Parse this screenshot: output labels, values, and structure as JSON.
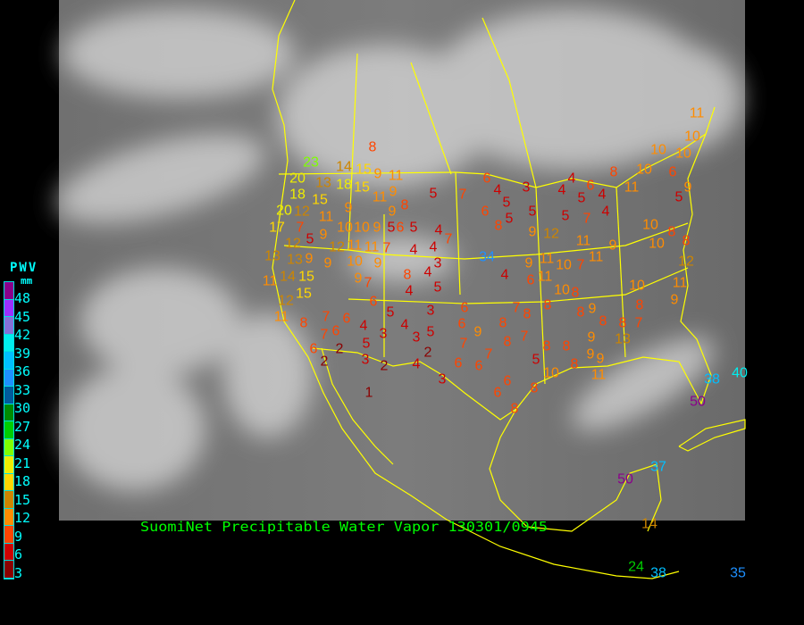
{
  "caption": "SuomiNet Precipitable Water Vapor 130301/0945",
  "legend": {
    "title": "PWV",
    "unit": "mm",
    "labels": [
      "48",
      "45",
      "42",
      "39",
      "36",
      "33",
      "30",
      "27",
      "24",
      "21",
      "18",
      "15",
      "12",
      "9",
      "6",
      "3"
    ],
    "colors": [
      "#8b008b",
      "#9b30ff",
      "#8470d8",
      "#00eeee",
      "#00bfff",
      "#1e90ff",
      "#005a9c",
      "#008b00",
      "#00cd00",
      "#7fff00",
      "#eeee00",
      "#ffd700",
      "#cd8500",
      "#ff8c00",
      "#ff4500",
      "#cd0000",
      "#8b0000"
    ]
  },
  "stations": {
    "values": [
      8,
      23,
      14,
      15,
      9,
      11,
      20,
      13,
      18,
      15,
      11,
      9,
      5,
      7,
      18,
      15,
      20,
      12,
      11,
      9,
      9,
      8,
      5,
      17,
      7,
      9,
      10,
      10,
      9,
      6,
      5,
      4,
      7,
      12,
      5,
      12,
      11,
      11,
      7,
      4,
      4,
      13,
      13,
      9,
      9,
      10,
      9,
      3,
      14,
      4,
      11,
      15,
      9,
      8,
      7,
      15,
      4,
      5,
      12,
      11,
      6,
      5,
      3,
      6,
      7,
      6,
      8,
      4,
      4,
      7,
      6,
      3,
      3,
      5,
      6,
      9,
      8,
      7,
      8,
      8,
      5,
      6,
      2,
      2,
      7,
      8,
      7,
      2,
      3,
      2,
      4,
      6,
      6,
      7,
      3,
      5,
      8,
      8,
      8,
      10,
      9,
      9,
      9,
      11,
      6,
      6,
      8,
      1,
      8,
      8,
      8,
      9,
      8,
      8,
      7,
      13,
      11,
      10,
      10,
      10,
      10,
      6,
      8,
      11,
      9,
      5,
      6,
      4,
      3,
      4,
      4,
      6,
      4,
      5,
      5,
      5,
      6,
      5,
      5,
      7,
      4,
      8,
      9,
      12,
      11,
      9,
      10,
      8,
      10,
      8,
      12,
      11,
      11,
      10,
      11,
      7,
      9,
      6,
      4,
      10,
      11,
      9,
      10,
      8,
      34,
      38,
      40,
      50,
      37,
      50,
      14,
      24,
      38,
      35
    ]
  }
}
